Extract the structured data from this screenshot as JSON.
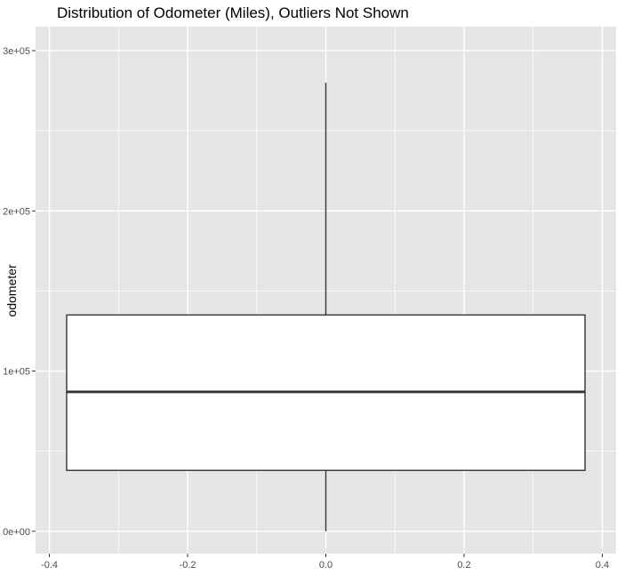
{
  "chart_data": {
    "type": "boxplot",
    "title": "Distribution of Odometer (Miles), Outliers Not Shown",
    "xlabel": "",
    "ylabel": "odometer",
    "xlim": [
      -0.42,
      0.42
    ],
    "ylim": [
      -14000,
      315000
    ],
    "x_ticks": [
      -0.4,
      -0.2,
      0.0,
      0.2,
      0.4
    ],
    "x_tick_labels": [
      "-0.4",
      "-0.2",
      "0.0",
      "0.2",
      "0.4"
    ],
    "y_ticks": [
      0,
      100000,
      200000,
      300000
    ],
    "y_tick_labels": [
      "0e+00",
      "1e+05",
      "2e+05",
      "3e+05"
    ],
    "grid": true,
    "panel_background": "#e5e5e5",
    "grid_color": "#ffffff",
    "box": {
      "x_center": 0.0,
      "x_min": -0.375,
      "x_max": 0.375,
      "whisker_low": 0,
      "q1": 38000,
      "median": 87000,
      "q3": 135000,
      "whisker_high": 280000,
      "fill": "#ffffff",
      "stroke": "#333333"
    }
  }
}
